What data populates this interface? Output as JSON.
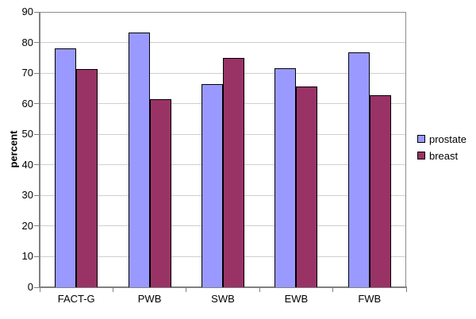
{
  "chart_data": {
    "type": "bar",
    "title": "",
    "xlabel": "",
    "ylabel": "percent",
    "categories": [
      "FACT-G",
      "PWB",
      "SWB",
      "EWB",
      "FWB"
    ],
    "series": [
      {
        "name": "prostate",
        "color": "#9999FF",
        "values": [
          78.0,
          83.3,
          66.4,
          71.7,
          76.7
        ]
      },
      {
        "name": "breast",
        "color": "#993366",
        "values": [
          71.2,
          61.5,
          75.0,
          65.6,
          62.8
        ]
      }
    ],
    "ylim": [
      0,
      90
    ],
    "ytick_step": 10,
    "yticks": [
      0,
      10,
      20,
      30,
      40,
      50,
      60,
      70,
      80,
      90
    ],
    "grid": "horizontal",
    "legend_position": "right",
    "bar_border_color": "#000000",
    "axis_color": "#808080",
    "gridline_color": "#cfcfcf",
    "background_color": "#ffffff"
  }
}
